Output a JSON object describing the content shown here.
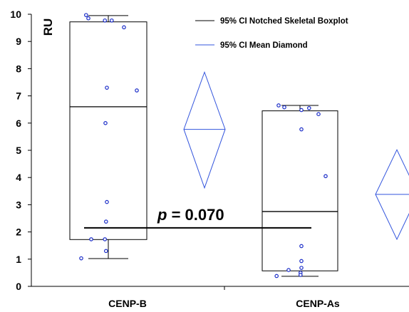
{
  "chart_data": {
    "type": "boxplot",
    "ylabel": "RU",
    "ylim": [
      0,
      10
    ],
    "yticks": [
      "0",
      "1",
      "2",
      "3",
      "4",
      "5",
      "6",
      "7",
      "8",
      "9",
      "10"
    ],
    "categories": [
      "CENP-B",
      "CENP-As"
    ],
    "legend": {
      "placement": "top-right",
      "entries": [
        {
          "label": "95% CI Notched Skeletal Boxplot",
          "color": "#000000"
        },
        {
          "label": "95% CI Mean Diamond",
          "color": "#3355dd"
        }
      ]
    },
    "annotation": {
      "prefix": "p",
      "text": " = 0.070",
      "y": 2.15
    },
    "series": [
      {
        "name": "CENP-B",
        "box": {
          "q1": 1.72,
          "median": 6.6,
          "q3": 9.72,
          "whisker_low": 1.02,
          "whisker_high": 9.95
        },
        "diamond": {
          "low": 3.62,
          "mean": 5.77,
          "high": 7.87
        },
        "points": [
          {
            "x": -0.78,
            "y": 9.97
          },
          {
            "x": -0.7,
            "y": 9.85
          },
          {
            "x": -0.12,
            "y": 9.77
          },
          {
            "x": 0.12,
            "y": 9.77
          },
          {
            "x": 0.55,
            "y": 9.52
          },
          {
            "x": -0.05,
            "y": 7.3
          },
          {
            "x": 1.0,
            "y": 7.2
          },
          {
            "x": -0.1,
            "y": 6.0
          },
          {
            "x": -0.05,
            "y": 3.1
          },
          {
            "x": -0.08,
            "y": 2.38
          },
          {
            "x": -0.6,
            "y": 1.73
          },
          {
            "x": -0.12,
            "y": 1.73
          },
          {
            "x": -0.08,
            "y": 1.3
          },
          {
            "x": -0.95,
            "y": 1.03
          }
        ]
      },
      {
        "name": "CENP-As",
        "box": {
          "q1": 0.57,
          "median": 2.75,
          "q3": 6.45,
          "whisker_low": 0.37,
          "whisker_high": 6.65
        },
        "diamond": {
          "low": 1.73,
          "mean": 3.38,
          "high": 5.02
        },
        "points": [
          {
            "x": -0.75,
            "y": 6.65
          },
          {
            "x": -0.55,
            "y": 6.58
          },
          {
            "x": 0.05,
            "y": 6.48
          },
          {
            "x": 0.32,
            "y": 6.55
          },
          {
            "x": 0.65,
            "y": 6.33
          },
          {
            "x": 0.05,
            "y": 5.77
          },
          {
            "x": 0.9,
            "y": 4.05
          },
          {
            "x": 0.05,
            "y": 1.48
          },
          {
            "x": 0.05,
            "y": 0.93
          },
          {
            "x": 0.05,
            "y": 0.68
          },
          {
            "x": -0.4,
            "y": 0.6
          },
          {
            "x": 0.02,
            "y": 0.5
          },
          {
            "x": 0.02,
            "y": 0.42
          },
          {
            "x": -0.82,
            "y": 0.38
          }
        ]
      }
    ]
  }
}
